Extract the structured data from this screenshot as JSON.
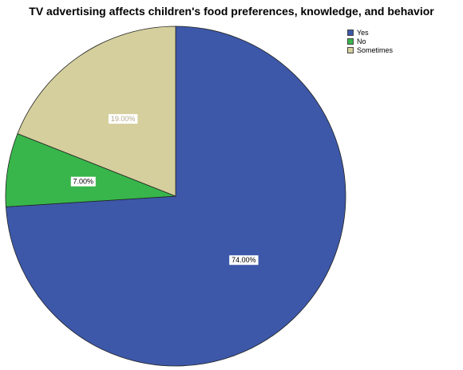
{
  "chart_data": {
    "type": "pie",
    "title": "TV advertising affects children's food preferences, knowledge, and behavior",
    "categories": [
      "Yes",
      "No",
      "Sometimes"
    ],
    "values": [
      74.0,
      7.0,
      19.0
    ],
    "value_labels": [
      "74.00%",
      "7.00%",
      "19.00%"
    ],
    "colors": [
      "#3d58a9",
      "#38b64b",
      "#d5cf9d"
    ],
    "label_text_colors": [
      "#000000",
      "#000000",
      "#b0a98a"
    ],
    "start_angle_deg": 90,
    "direction": "clockwise",
    "legend_position": "top-right"
  }
}
